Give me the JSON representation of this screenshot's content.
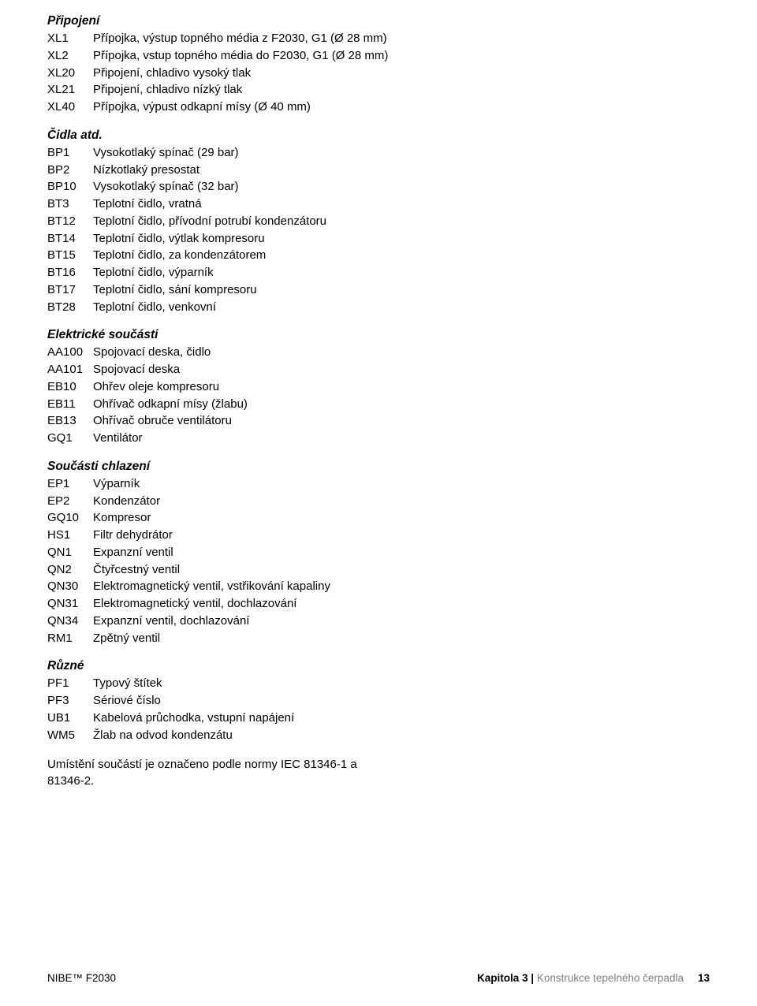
{
  "sections": {
    "pripojeni": {
      "title": "Připojení",
      "items": [
        {
          "code": "XL1",
          "desc": "Přípojka, výstup topného média z F2030, G1 (Ø 28 mm)"
        },
        {
          "code": "XL2",
          "desc": "Přípojka, vstup topného média do F2030, G1 (Ø 28 mm)"
        },
        {
          "code": "XL20",
          "desc": "Připojení, chladivo vysoký tlak"
        },
        {
          "code": "XL21",
          "desc": "Připojení, chladivo nízký tlak"
        },
        {
          "code": "XL40",
          "desc": "Přípojka, výpust odkapní mísy (Ø 40 mm)"
        }
      ]
    },
    "cidla": {
      "title": "Čidla atd.",
      "items": [
        {
          "code": "BP1",
          "desc": "Vysokotlaký spínač (29 bar)"
        },
        {
          "code": "BP2",
          "desc": "Nízkotlaký presostat"
        },
        {
          "code": "BP10",
          "desc": "Vysokotlaký spínač (32 bar)"
        },
        {
          "code": "BT3",
          "desc": "Teplotní čidlo, vratná"
        },
        {
          "code": "BT12",
          "desc": "Teplotní čidlo, přívodní potrubí kondenzátoru"
        },
        {
          "code": "BT14",
          "desc": "Teplotní čidlo, výtlak kompresoru"
        },
        {
          "code": "BT15",
          "desc": "Teplotní čidlo, za kondenzátorem"
        },
        {
          "code": "BT16",
          "desc": "Teplotní čidlo, výparník"
        },
        {
          "code": "BT17",
          "desc": "Teplotní čidlo, sání kompresoru"
        },
        {
          "code": "BT28",
          "desc": "Teplotní čidlo, venkovní"
        }
      ]
    },
    "elektricke": {
      "title": "Elektrické součásti",
      "items": [
        {
          "code": "AA100",
          "desc": "Spojovací deska, čidlo"
        },
        {
          "code": "AA101",
          "desc": "Spojovací deska"
        },
        {
          "code": "EB10",
          "desc": "Ohřev oleje kompresoru"
        },
        {
          "code": "EB11",
          "desc": "Ohřívač odkapní mísy (žlabu)"
        },
        {
          "code": "EB13",
          "desc": "Ohřívač obruče ventilátoru"
        },
        {
          "code": "GQ1",
          "desc": "Ventilátor"
        }
      ]
    },
    "soucasti": {
      "title": "Součásti chlazení",
      "items": [
        {
          "code": "EP1",
          "desc": "Výparník"
        },
        {
          "code": "EP2",
          "desc": "Kondenzátor"
        },
        {
          "code": "GQ10",
          "desc": "Kompresor"
        },
        {
          "code": "HS1",
          "desc": "Filtr dehydrátor"
        },
        {
          "code": "QN1",
          "desc": "Expanzní ventil"
        },
        {
          "code": "QN2",
          "desc": "Čtyřcestný ventil"
        },
        {
          "code": "QN30",
          "desc": "Elektromagnetický ventil, vstřikování kapaliny"
        },
        {
          "code": "QN31",
          "desc": "Elektromagnetický ventil, dochlazování"
        },
        {
          "code": "QN34",
          "desc": "Expanzní ventil, dochlazování"
        },
        {
          "code": "RM1",
          "desc": "Zpětný ventil"
        }
      ]
    },
    "ruzne": {
      "title": "Různé",
      "items": [
        {
          "code": "PF1",
          "desc": "Typový štítek"
        },
        {
          "code": "PF3",
          "desc": "Sériové číslo"
        },
        {
          "code": "UB1",
          "desc": "Kabelová průchodka, vstupní napájení"
        },
        {
          "code": "WM5",
          "desc": "Žlab na odvod kondenzátu"
        }
      ]
    }
  },
  "note": "Umístění součástí je označeno podle normy IEC 81346-1 a 81346-2.",
  "footer": {
    "left": "NIBE™ F2030",
    "chapter_bold": "Kapitola 3 |",
    "chapter": "Konstrukce tepelného čerpadla",
    "page": "13"
  }
}
